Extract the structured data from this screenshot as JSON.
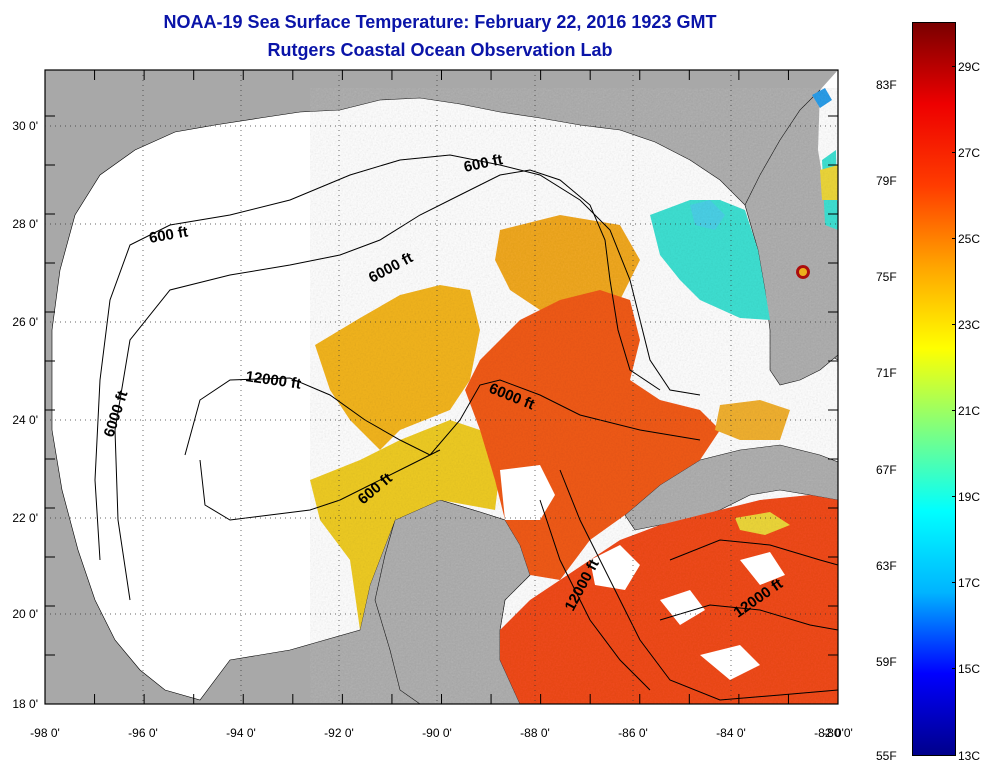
{
  "title": "NOAA-19 Sea Surface Temperature:  February 22, 2016 1923 GMT",
  "subtitle": "Rutgers Coastal Ocean Observation Lab",
  "lon_labels": [
    "-98 0'",
    "-96 0'",
    "-94 0'",
    "-92 0'",
    "-90 0'",
    "-88 0'",
    "-86 0'",
    "-84 0'",
    "-82 0'",
    "-80 0'"
  ],
  "lat_labels": [
    "30 0'",
    "28 0'",
    "26 0'",
    "24 0'",
    "22 0'",
    "20 0'",
    "18 0'"
  ],
  "contour_labels": [
    "600 ft",
    "600 ft",
    "6000 ft",
    "6000 ft",
    "12000 ft",
    "6000 ft",
    "600 ft",
    "12000 ft",
    "12000 ft"
  ],
  "colorbar": {
    "fahrenheit": [
      "83F",
      "79F",
      "75F",
      "71F",
      "67F",
      "63F",
      "59F",
      "55F"
    ],
    "celsius": [
      "29C",
      "27C",
      "25C",
      "23C",
      "21C",
      "19C",
      "17C",
      "15C",
      "13C"
    ],
    "range_c": [
      13,
      30
    ],
    "colors": [
      "#00008b",
      "#0000ff",
      "#00b4ff",
      "#00ffff",
      "#7fff7f",
      "#ffff00",
      "#ffa500",
      "#ff3c00",
      "#ee0000",
      "#7a0000"
    ]
  },
  "colors": {
    "land": "#a8a8a8",
    "cloud_mask": "#ffffff",
    "title": "#0a14a8",
    "sst_warm": "#f04a1a",
    "sst_mid": "#f2b41e",
    "sst_cool": "#3ee0d2"
  }
}
